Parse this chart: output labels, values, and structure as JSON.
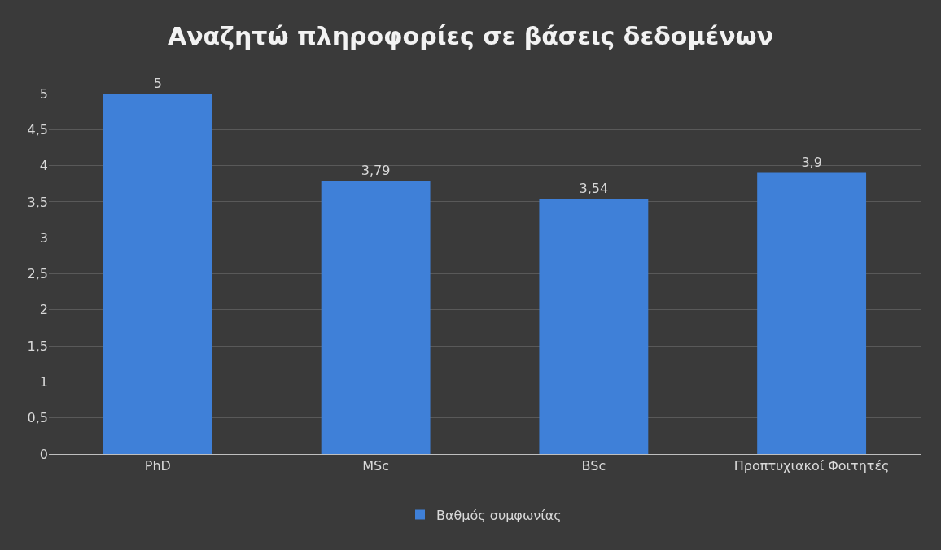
{
  "chart_data": {
    "type": "bar",
    "title": "Αναζητώ πληροφορίες σε βάσεις δεδομένων",
    "categories": [
      "PhD",
      "MSc",
      "BSc",
      "Προπτυχιακοί Φοιτητές"
    ],
    "series": [
      {
        "name": "Βαθμός συμφωνίας",
        "color": "#3f80d8",
        "values": [
          5,
          3.79,
          3.54,
          3.9
        ],
        "value_labels": [
          "5",
          "3,79",
          "3,54",
          "3,9"
        ]
      }
    ],
    "ylim": [
      0,
      5
    ],
    "yticks": [
      0,
      {
        "value": 0.5,
        "label": "0,5"
      },
      1,
      {
        "value": 1.5,
        "label": "1,5"
      },
      2,
      {
        "value": 2.5,
        "label": "2,5"
      },
      3,
      {
        "value": 3.5,
        "label": "3,5"
      },
      4,
      {
        "value": 4.5,
        "label": "4,5"
      },
      5
    ],
    "grid": "y",
    "legend": "bottom"
  }
}
